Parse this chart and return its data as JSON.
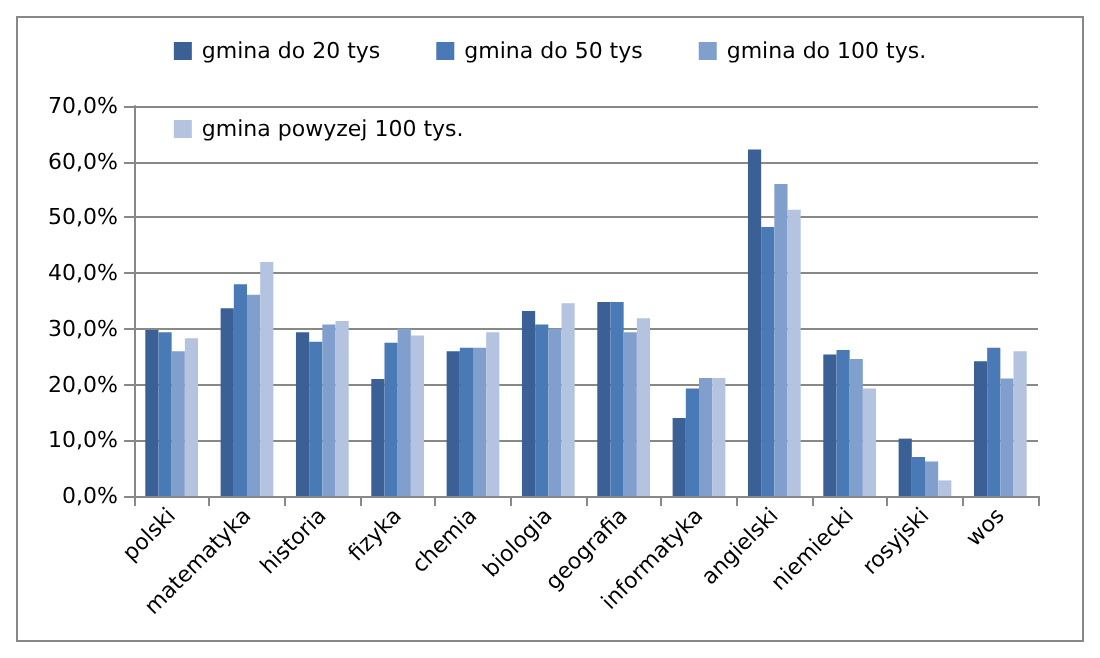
{
  "chart_data": {
    "type": "bar",
    "categories": [
      "polski",
      "matematyka",
      "historia",
      "fizyka",
      "chemia",
      "biologia",
      "geografia",
      "informatyka",
      "angielski",
      "niemiecki",
      "rosyjski",
      "wos"
    ],
    "series": [
      {
        "name": "gmina do 20 tys",
        "color": "#3a6096",
        "values": [
          29.8,
          33.7,
          29.4,
          21,
          26,
          33.2,
          34.8,
          14,
          62.2,
          25.4,
          10.3,
          24.2
        ]
      },
      {
        "name": "gmina do 50 tys",
        "color": "#4a7ab5",
        "values": [
          29.4,
          38,
          27.7,
          27.5,
          26.6,
          30.8,
          34.8,
          19.3,
          48.3,
          26.2,
          7,
          26.6
        ]
      },
      {
        "name": "gmina do 100 tys.",
        "color": "#809fcd",
        "values": [
          26,
          36.1,
          30.8,
          30,
          26.6,
          30,
          29.4,
          21.2,
          56,
          24.6,
          6.2,
          21.1
        ]
      },
      {
        "name": "gmina powyzej 100 tys.",
        "color": "#b4c3e0",
        "values": [
          28.3,
          42,
          31.4,
          28.8,
          29.4,
          34.6,
          31.9,
          21.2,
          51.4,
          19.3,
          2.8,
          26
        ]
      }
    ],
    "ylim": [
      0,
      70
    ],
    "yticks": [
      {
        "value": 0,
        "label": "0,0%"
      },
      {
        "value": 10,
        "label": "10,0%"
      },
      {
        "value": 20,
        "label": "20,0%"
      },
      {
        "value": 30,
        "label": "30,0%"
      },
      {
        "value": 40,
        "label": "40,0%"
      },
      {
        "value": 50,
        "label": "50,0%"
      },
      {
        "value": 60,
        "label": "60,0%"
      },
      {
        "value": 70,
        "label": "70,0%"
      }
    ],
    "grid": "y",
    "legend": "top"
  }
}
